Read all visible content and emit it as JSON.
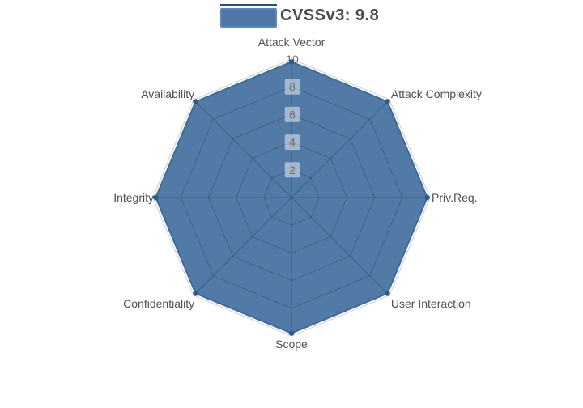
{
  "chart_data": {
    "type": "radar",
    "title": "",
    "legend": {
      "label": "CVSSv3: 9.8",
      "position": "top"
    },
    "categories": [
      "Attack Vector",
      "Attack Complexity",
      "Priv.Req.",
      "User Interaction",
      "Scope",
      "Confidentiality",
      "Integrity",
      "Availability"
    ],
    "series": [
      {
        "name": "CVSSv3: 9.8",
        "values": [
          9.8,
          9.8,
          9.8,
          9.8,
          9.8,
          9.8,
          9.8,
          9.8
        ]
      }
    ],
    "radial_ticks": [
      2,
      4,
      6,
      8,
      10
    ],
    "ylim": [
      0,
      10
    ],
    "grid": "polygon-web",
    "colors": {
      "series_fill": "#44709f",
      "series_fill_opacity": 0.93,
      "series_stroke": "#3e6a9b",
      "marker": "#305a85",
      "grid_line": "rgba(0,0,0,0.2)",
      "tick_bg": "rgba(255,255,255,0.48)",
      "tick_bg_max": "#ffffff",
      "tick_text": "#6a7077",
      "category_text": "#4f4f4f",
      "legend_swatch": "#4d77a5",
      "legend_swatch_border": "#5b86b8",
      "legend_swatch_topline": "#2e4f74",
      "background": "#ffffff"
    }
  }
}
